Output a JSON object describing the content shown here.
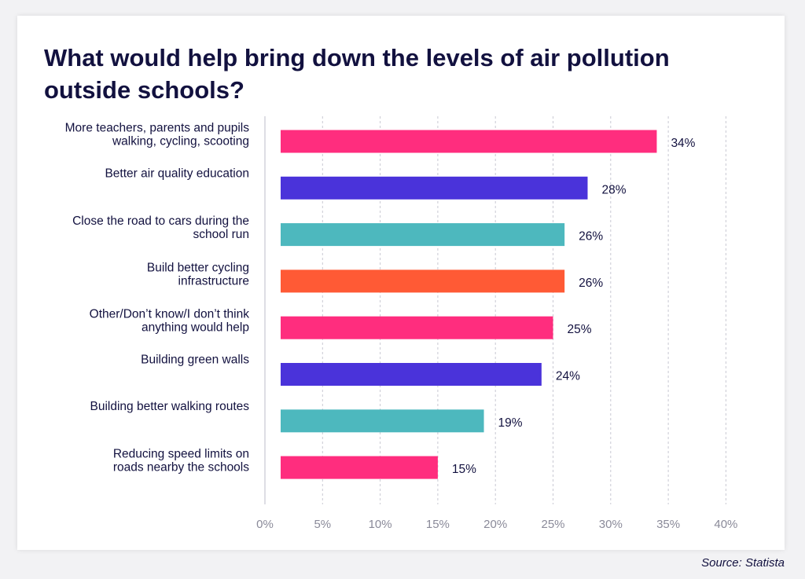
{
  "chart_data": {
    "type": "bar",
    "orientation": "horizontal",
    "title": "What would help bring down the levels of air pollution outside schools?",
    "categories": [
      [
        "More teachers, parents and pupils",
        "walking, cycling, scooting"
      ],
      [
        "Better air quality education"
      ],
      [
        "Close the road to cars during the",
        "school run"
      ],
      [
        "Build better cycling",
        "infrastructure"
      ],
      [
        "Other/Don’t know/I don’t think",
        "anything would help"
      ],
      [
        "Building green walls"
      ],
      [
        "Building better walking routes"
      ],
      [
        "Reducing speed limits on",
        "roads nearby the schools"
      ]
    ],
    "values": [
      34,
      28,
      26,
      26,
      25,
      24,
      19,
      15
    ],
    "value_labels": [
      "34%",
      "28%",
      "26%",
      "26%",
      "25%",
      "24%",
      "19%",
      "15%"
    ],
    "bar_colors": [
      "#ff2d7e",
      "#4a33da",
      "#4db8be",
      "#ff5a35",
      "#ff2d7e",
      "#4a33da",
      "#4db8be",
      "#ff2d7e"
    ],
    "xlim": [
      0,
      40
    ],
    "x_ticks": [
      0,
      5,
      10,
      15,
      20,
      25,
      30,
      35,
      40
    ],
    "x_tick_labels": [
      "0%",
      "5%",
      "10%",
      "15%",
      "20%",
      "25%",
      "30%",
      "35%",
      "40%"
    ],
    "xlabel": "",
    "ylabel": "",
    "grid": "vertical dashed",
    "legend": "none"
  },
  "source": "Source: Statista"
}
